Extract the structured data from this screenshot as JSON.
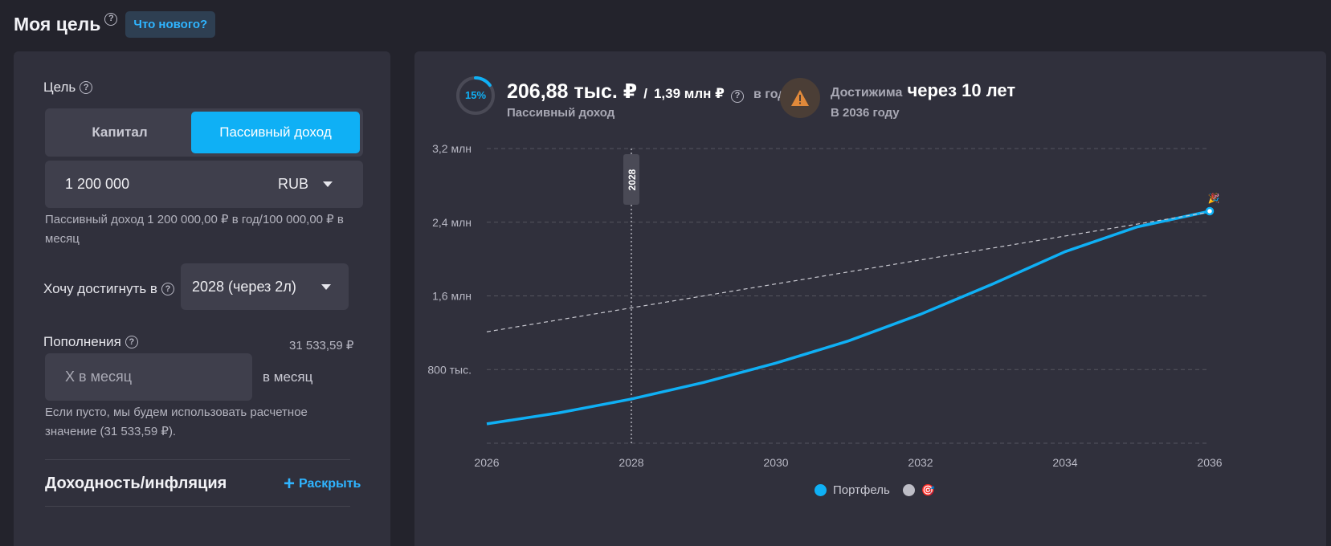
{
  "header": {
    "title": "Моя цель",
    "help": "?",
    "whats_new": "Что нового?"
  },
  "goal": {
    "label": "Цель",
    "tabs": [
      "Капитал",
      "Пассивный доход"
    ],
    "active_tab": "Пассивный доход",
    "amount": "1 200 000",
    "currency": "RUB",
    "hint": "Пассивный доход 1 200 000,00 ₽ в год/100 000,00 ₽ в месяц"
  },
  "target": {
    "label": "Хочу достигнуть в",
    "selected": "2028 (через 2л)"
  },
  "deposits": {
    "label": "Пополнения",
    "value": "31 533,59 ₽",
    "placeholder": "X в месяц",
    "suffix": "в месяц",
    "hint": "Если пусто, мы будем использовать расчетное значение (31 533,59 ₽)."
  },
  "yield_section": {
    "title": "Доходность/инфляция",
    "expand": "Раскрыть"
  },
  "summary": {
    "progress_label": "15%",
    "progress_fraction": 0.15,
    "income_value": "206,88 тыс. ₽",
    "separator": "/",
    "target_value": "1,39 млн ₽",
    "period": "в год",
    "income_caption": "Пассивный доход",
    "achievable_prefix": "Достижима",
    "achievable_value": "через 10 лет",
    "achievable_year": "В 2036 году"
  },
  "colors": {
    "accent": "#0fb0f5",
    "warning": "#e0893a",
    "background": "#23232c",
    "panel": "#30303c"
  },
  "chart_data": {
    "type": "line",
    "x": [
      2026,
      2027,
      2028,
      2029,
      2030,
      2031,
      2032,
      2033,
      2034,
      2035,
      2036
    ],
    "series": [
      {
        "name": "Портфель",
        "values": [
          210000,
          330000,
          480000,
          660000,
          870000,
          1110000,
          1400000,
          1730000,
          2080000,
          2350000,
          2520000
        ]
      },
      {
        "name": "",
        "values": [
          1210000,
          1340000,
          1470000,
          1600000,
          1730000,
          1860000,
          1990000,
          2120000,
          2250000,
          2380000,
          2510000
        ]
      }
    ],
    "xlim": [
      2026,
      2036
    ],
    "ylim": [
      0,
      3200000
    ],
    "x_ticks": [
      "2026",
      "2028",
      "2030",
      "2032",
      "2034",
      "2036"
    ],
    "y_ticks": [
      {
        "value": 800000,
        "label": "800 тыс."
      },
      {
        "value": 1600000,
        "label": "1,6 млн"
      },
      {
        "value": 2400000,
        "label": "2,4 млн"
      },
      {
        "value": 3200000,
        "label": "3,2 млн"
      }
    ],
    "marker_year": 2028,
    "marker_label": "2028",
    "grid": true,
    "legend_position": "bottom",
    "legend": [
      "Портфель",
      ""
    ]
  }
}
